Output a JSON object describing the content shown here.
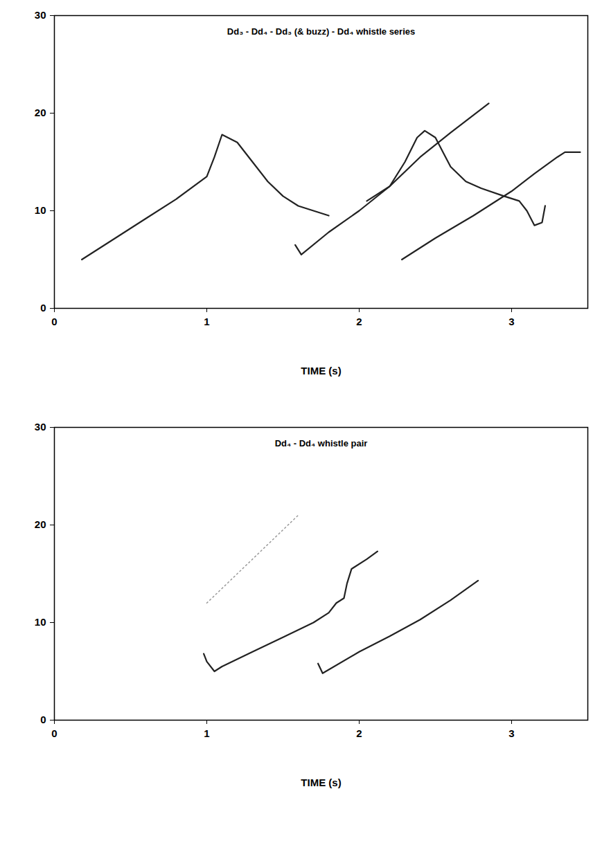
{
  "chart_data": [
    {
      "type": "line",
      "title": "Dd₃ - Dd₄ - Dd₃ (& buzz) - Dd₄ whistle series",
      "x_label": "TIME (s)",
      "xlim": [
        0,
        3.5
      ],
      "xticks": [
        0,
        1,
        2,
        3
      ],
      "ylim": [
        0,
        30
      ],
      "yticks": [
        0,
        10,
        20,
        30
      ],
      "series": [
        {
          "color": "#222222",
          "line_style": "solid",
          "x": [
            0.18,
            0.4,
            0.6,
            0.8,
            1.0,
            1.05,
            1.1,
            1.2,
            1.3,
            1.4,
            1.5,
            1.6,
            1.7,
            1.8
          ],
          "values": [
            5,
            7.2,
            9.2,
            11.2,
            13.5,
            15.5,
            17.8,
            17,
            15,
            13,
            11.5,
            10.5,
            10,
            9.5
          ]
        },
        {
          "color": "#222222",
          "line_style": "solid",
          "x": [
            1.58,
            1.62,
            1.8,
            2.0,
            2.2,
            2.4,
            2.6,
            2.85
          ],
          "values": [
            6.5,
            5.5,
            7.8,
            10,
            12.5,
            15.5,
            18,
            21
          ]
        },
        {
          "color": "#222222",
          "line_style": "solid",
          "x": [
            2.05,
            2.2,
            2.3,
            2.38,
            2.43,
            2.5,
            2.55,
            2.6,
            2.7,
            2.8,
            2.95,
            3.05,
            3.1,
            3.15,
            3.2,
            3.22
          ],
          "values": [
            11,
            12.5,
            15,
            17.5,
            18.2,
            17.5,
            16,
            14.5,
            13,
            12.3,
            11.5,
            11,
            10,
            8.5,
            8.8,
            10.5
          ]
        },
        {
          "color": "#222222",
          "line_style": "solid",
          "x": [
            2.28,
            2.5,
            2.75,
            3.0,
            3.15,
            3.3,
            3.35,
            3.45
          ],
          "values": [
            5,
            7.2,
            9.5,
            12,
            13.8,
            15.5,
            16,
            16
          ]
        }
      ]
    },
    {
      "type": "line",
      "title": "Dd₄ - Dd₄ whistle pair",
      "x_label": "TIME (s)",
      "xlim": [
        0,
        3.5
      ],
      "xticks": [
        0,
        1,
        2,
        3
      ],
      "ylim": [
        0,
        30
      ],
      "yticks": [
        0,
        10,
        20,
        30
      ],
      "series": [
        {
          "color": "#999999",
          "line_style": "dotted",
          "x": [
            1.0,
            1.3,
            1.6
          ],
          "values": [
            12,
            16.5,
            21
          ]
        },
        {
          "color": "#222222",
          "line_style": "solid",
          "x": [
            0.98,
            1.0,
            1.05,
            1.1,
            1.3,
            1.5,
            1.7,
            1.8,
            1.85,
            1.9,
            1.92,
            1.95,
            2.05,
            2.12
          ],
          "values": [
            6.8,
            6,
            5,
            5.5,
            7,
            8.5,
            10,
            11,
            12,
            12.5,
            14,
            15.5,
            16.5,
            17.3
          ]
        },
        {
          "color": "#222222",
          "line_style": "solid",
          "x": [
            1.73,
            1.76,
            2.0,
            2.2,
            2.4,
            2.6,
            2.78
          ],
          "values": [
            5.8,
            4.8,
            7,
            8.6,
            10.3,
            12.3,
            14.3
          ]
        }
      ]
    }
  ]
}
